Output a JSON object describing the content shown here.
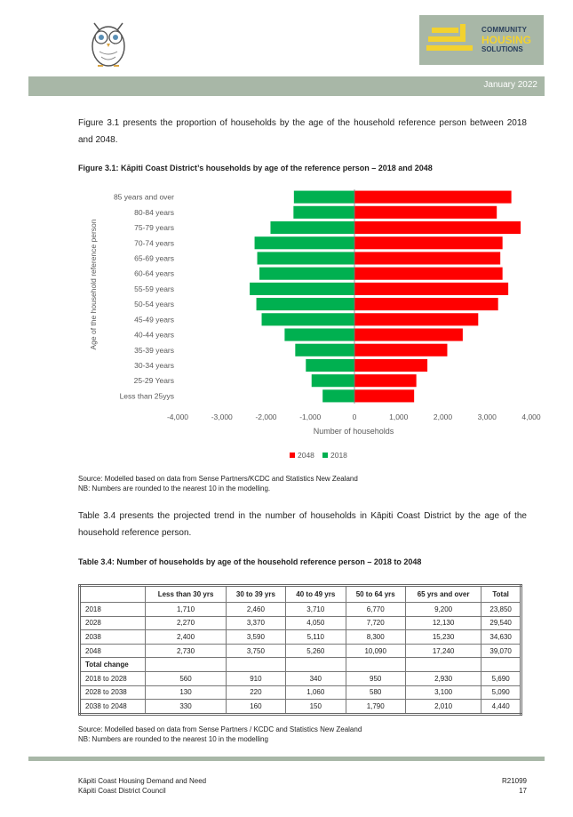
{
  "header": {
    "brand_line1": "COMMUNITY",
    "brand_line2": "HOUSING",
    "brand_line3": "SOLUTIONS",
    "date": "January 2022",
    "accent_color": "#a8b7a7",
    "logo_yellow": "#f3d22f",
    "logo_navy": "#2a3f5c"
  },
  "intro_text": "Figure 3.1 presents the proportion of households by the age of the household reference person between 2018 and 2048.",
  "figure_caption": "Figure 3.1:  Kāpiti Coast District’s households by age of the reference person – 2018 and 2048",
  "chart_data": {
    "type": "bar",
    "orientation": "horizontal",
    "categories": [
      "85 years and over",
      "80-84 years",
      "75-79 years",
      "70-74 years",
      "65-69 years",
      "60-64 years",
      "55-59 years",
      "50-54 years",
      "45-49 years",
      "40-44 years",
      "35-39 years",
      "30-34 years",
      "25-29 Years",
      "Less than 25yys"
    ],
    "series": [
      {
        "name": "2048",
        "color": "#ff0000",
        "values": [
          3550,
          3220,
          3760,
          3350,
          3300,
          3350,
          3480,
          3250,
          2800,
          2450,
          2100,
          1650,
          1400,
          1350
        ]
      },
      {
        "name": "2018",
        "color": "#00b050",
        "values": [
          -1370,
          -1380,
          -1900,
          -2260,
          -2200,
          -2150,
          -2370,
          -2220,
          -2100,
          -1580,
          -1340,
          -1100,
          -970,
          -720
        ]
      }
    ],
    "xlabel": "Number of households",
    "ylabel": "Age of the household reference person",
    "xlim": [
      -4000,
      4000
    ],
    "xticks": [
      "-4,000",
      "-3,000",
      "-2,000",
      "-1,000",
      "0",
      "1,000",
      "2,000",
      "3,000",
      "4,000"
    ],
    "legend_position": "bottom",
    "grid": false
  },
  "source_note": "Source:  Modelled based on data from Sense Partners/KCDC and Statistics New Zealand",
  "nb_note": "NB:  Numbers are rounded to the nearest 10 in the modelling.",
  "table_intro": "Table 3.4 presents the projected trend in the number of households in Kāpiti Coast District by the age of the household reference person.",
  "table_caption": "Table 3.4:  Number of households by age of the household reference person – 2018 to 2048",
  "table": {
    "headers": [
      "",
      "Less than 30 yrs",
      "30 to 39 yrs",
      "40 to 49 yrs",
      "50 to 64 yrs",
      "65 yrs and over",
      "Total"
    ],
    "rows": [
      [
        "2018",
        "1,710",
        "2,460",
        "3,710",
        "6,770",
        "9,200",
        "23,850"
      ],
      [
        "2028",
        "2,270",
        "3,370",
        "4,050",
        "7,720",
        "12,130",
        "29,540"
      ],
      [
        "2038",
        "2,400",
        "3,590",
        "5,110",
        "8,300",
        "15,230",
        "34,630"
      ],
      [
        "2048",
        "2,730",
        "3,750",
        "5,260",
        "10,090",
        "17,240",
        "39,070"
      ]
    ],
    "section_label": "Total change",
    "change_rows": [
      [
        "2018 to 2028",
        "560",
        "910",
        "340",
        "950",
        "2,930",
        "5,690"
      ],
      [
        "2028 to 2038",
        "130",
        "220",
        "1,060",
        "580",
        "3,100",
        "5,090"
      ],
      [
        "2038 to 2048",
        "330",
        "160",
        "150",
        "1,790",
        "2,010",
        "4,440"
      ]
    ]
  },
  "table_source_note": "Source:  Modelled based on data from Sense Partners / KCDC and Statistics New Zealand",
  "table_nb_note": "NB:  Numbers are rounded to the nearest 10 in the modelling",
  "footer": {
    "left_line1": "Kāpiti Coast Housing Demand and Need",
    "left_line2": "Kāpiti Coast District Council",
    "right_line1": "R21099",
    "page_number": "17"
  }
}
